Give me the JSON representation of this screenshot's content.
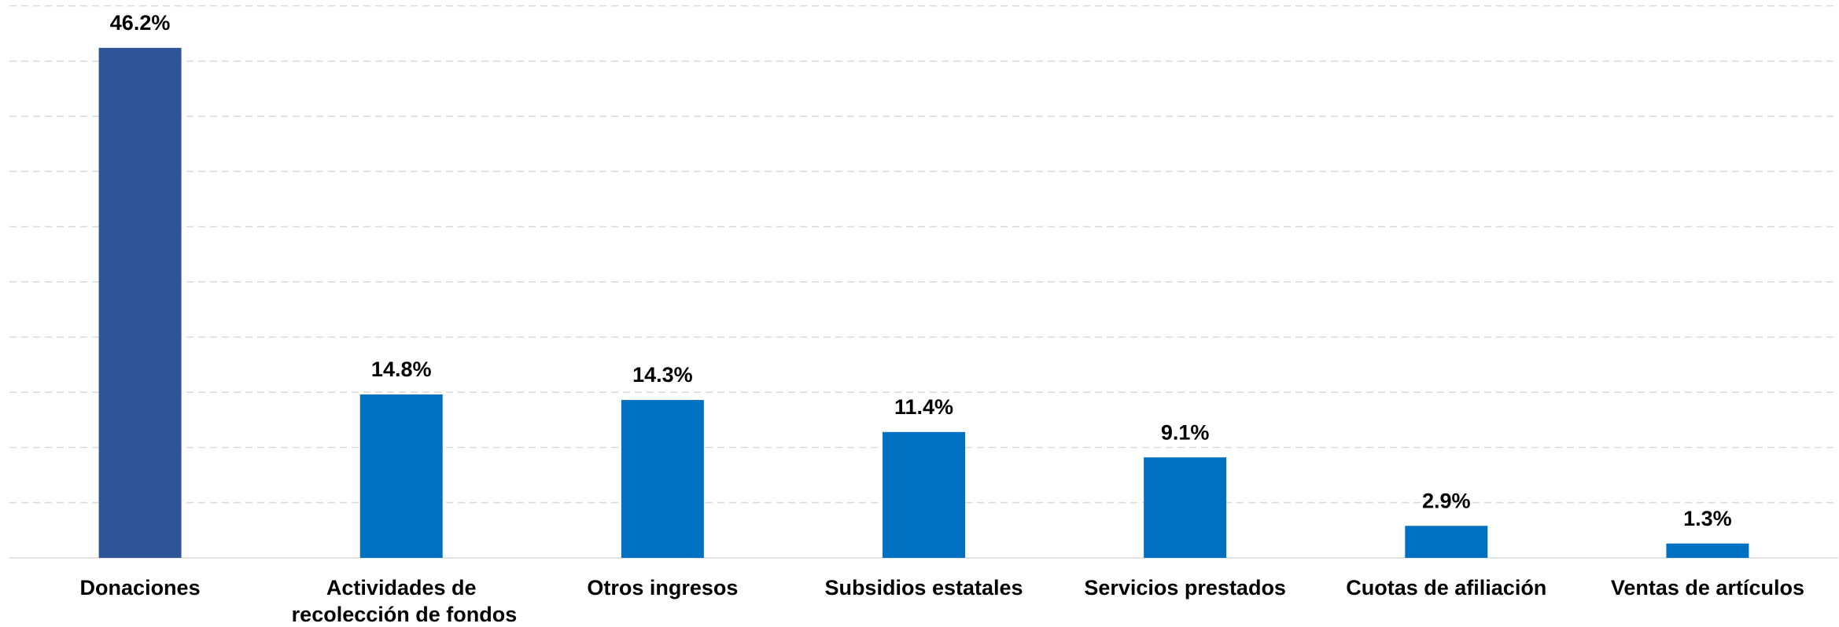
{
  "chart_data": {
    "type": "bar",
    "categories": [
      "Donaciones",
      "Actividades de recolección de fondos",
      "Otros ingresos",
      "Subsidios estatales",
      "Servicios prestados",
      "Cuotas de afiliación",
      "Ventas de artículos"
    ],
    "values": [
      46.2,
      14.8,
      14.3,
      11.4,
      9.1,
      2.9,
      1.3
    ],
    "value_labels": [
      "46.2%",
      "14.8%",
      "14.3%",
      "11.4%",
      "9.1%",
      "2.9%",
      "1.3%"
    ],
    "colors": [
      "#2f5597",
      "#0070c0",
      "#0070c0",
      "#0070c0",
      "#0070c0",
      "#0070c0",
      "#0070c0"
    ],
    "ylim": [
      0,
      50
    ],
    "yticks": [
      0,
      5,
      10,
      15,
      20,
      25,
      30,
      35,
      40,
      45,
      50
    ],
    "grid": true
  }
}
